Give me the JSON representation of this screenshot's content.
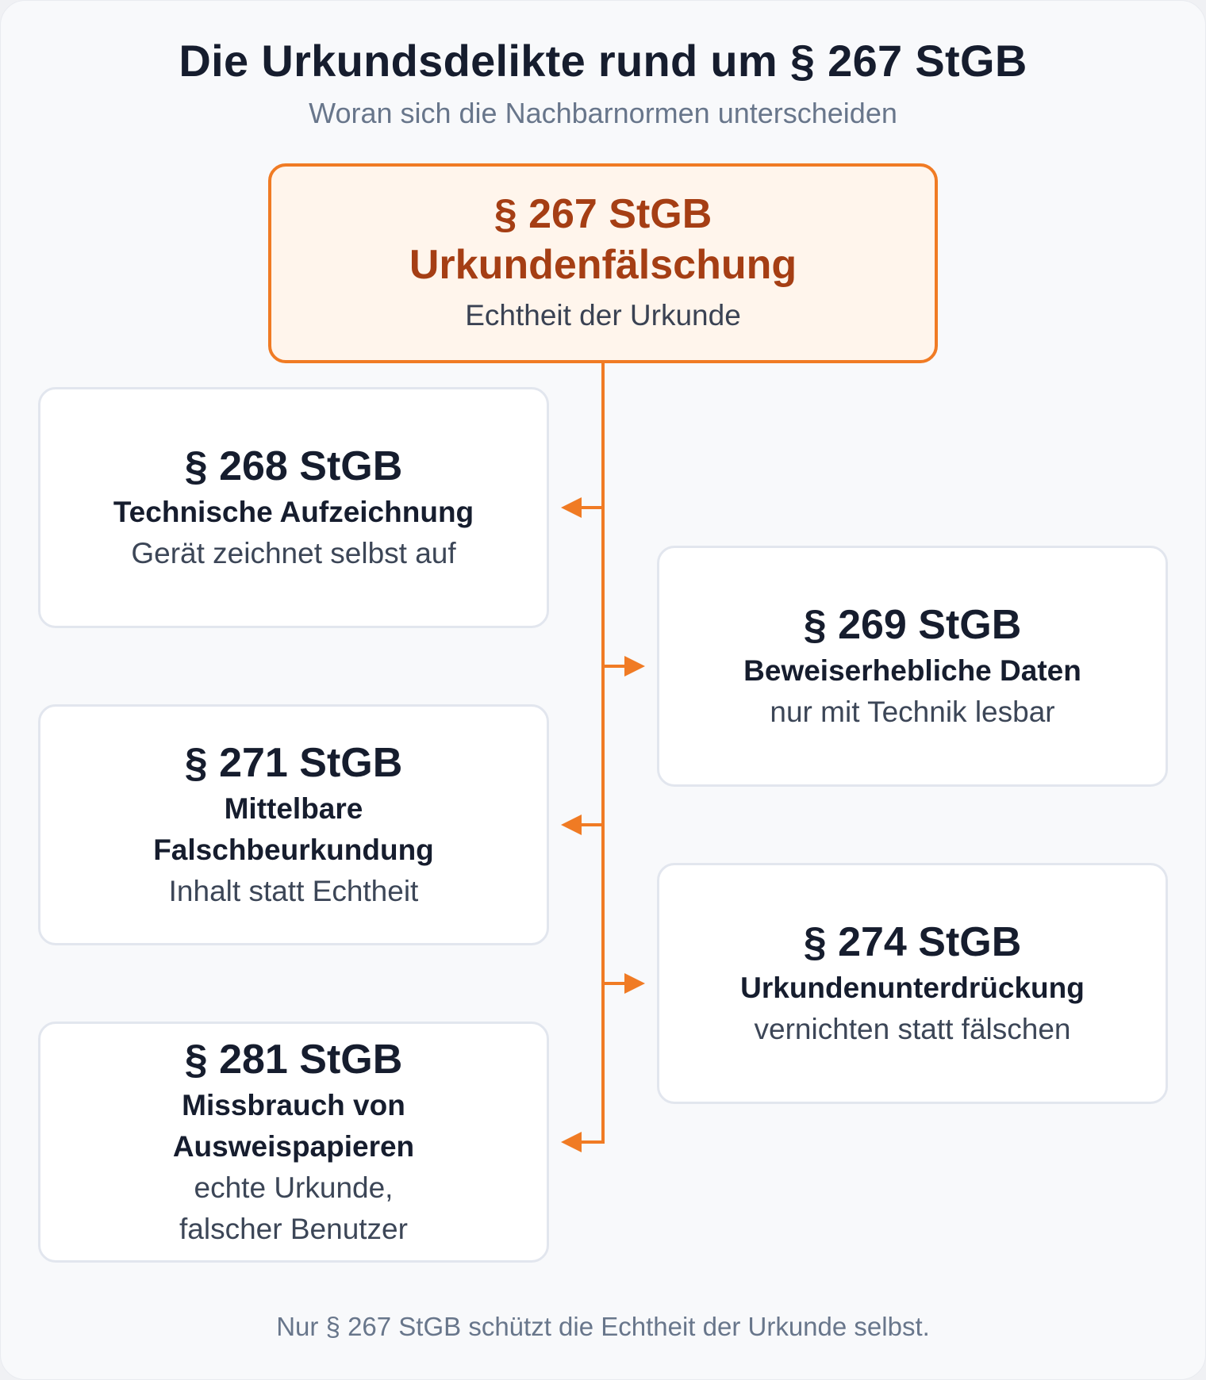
{
  "title": "Die Urkundsdelikte rund um § 267 StGB",
  "subtitle": "Woran sich die Nachbarnormen unterscheiden",
  "main_node": {
    "section": "§ 267 StGB",
    "name": "Urkundenfälschung",
    "description": "Echtheit der Urkunde"
  },
  "nodes": [
    {
      "section": "§ 268 StGB",
      "name": "Technische Aufzeichnung",
      "description": "Gerät zeichnet selbst auf",
      "side": "left"
    },
    {
      "section": "§ 269 StGB",
      "name": "Beweiserhebliche Daten",
      "description": "nur mit Technik lesbar",
      "side": "right"
    },
    {
      "section": "§ 271 StGB",
      "name": "Mittelbare Falschbeurkundung",
      "description": "Inhalt statt Echtheit",
      "side": "left"
    },
    {
      "section": "§ 274 StGB",
      "name": "Urkundenunterdrückung",
      "description": "vernichten statt fälschen",
      "side": "right"
    },
    {
      "section": "§ 281 StGB",
      "name": "Missbrauch von Ausweispapieren",
      "description": "echte Urkunde, falscher Benutzer",
      "side": "left"
    }
  ],
  "footer": "Nur § 267 StGB schützt die Echtheit der Urkunde selbst.",
  "colors": {
    "accent": "#f07b24",
    "main_text": "#a53e14",
    "main_fill": "#fff5ec"
  }
}
